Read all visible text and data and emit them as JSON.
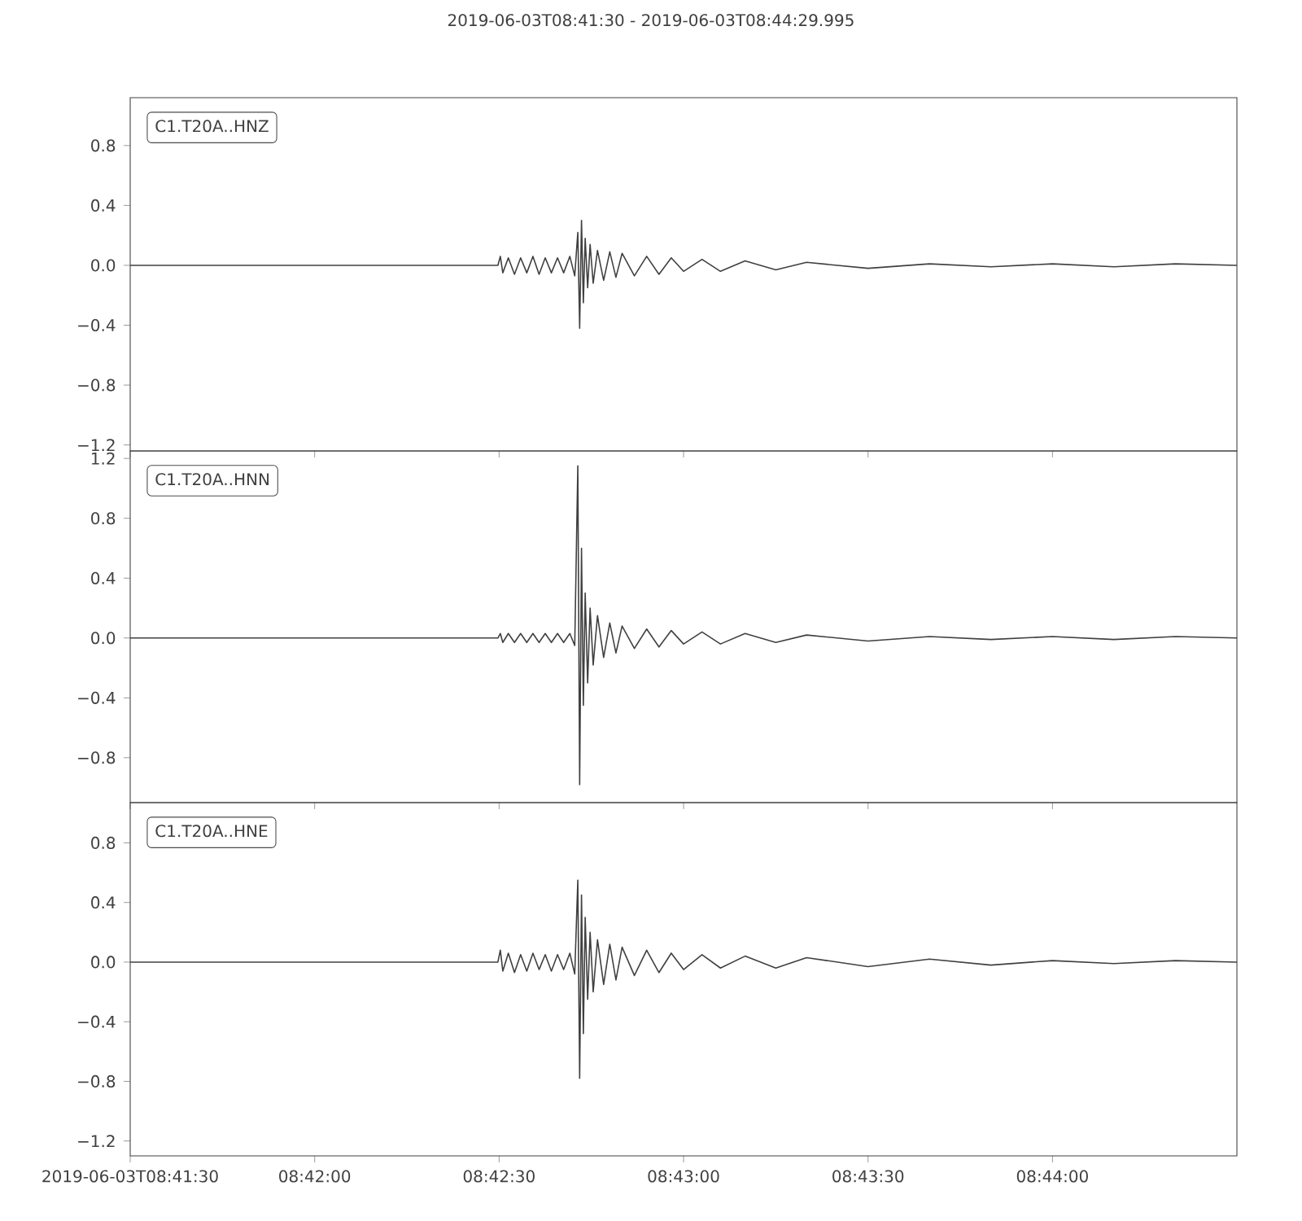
{
  "chart_data": [
    {
      "type": "line",
      "title": "2019-06-03T08:41:30  -  2019-06-03T08:44:29.995",
      "legend": "top left",
      "tick_labels": "y",
      "xlim": [
        "2019-06-03T08:41:30",
        "2019-06-03T08:44:29.995"
      ],
      "xticks": [
        {
          "value": "2019-06-03T08:41:30",
          "label": null
        },
        {
          "value": "2019-06-03T08:42:00",
          "label": null
        },
        {
          "value": "2019-06-03T08:42:30",
          "label": null
        },
        {
          "value": "2019-06-03T08:43:00",
          "label": null
        },
        {
          "value": "2019-06-03T08:43:30",
          "label": null
        },
        {
          "value": "2019-06-03T08:44:00",
          "label": null
        }
      ],
      "ylim": [
        -1.24,
        1.12
      ],
      "yticks": [
        {
          "value": -1.2,
          "label": "−1.2"
        },
        {
          "value": -0.8,
          "label": "−0.8"
        },
        {
          "value": -0.4,
          "label": "−0.4"
        },
        {
          "value": 0,
          "label": "0.0"
        },
        {
          "value": 0.4,
          "label": "0.4"
        },
        {
          "value": 0.8,
          "label": "0.8"
        }
      ],
      "series": [
        {
          "name": "C1.T20A..HNZ",
          "color": "#404040",
          "x": [
            "2019-06-03T08:41:30",
            "2019-06-03T08:42:29.8",
            "2019-06-03T08:42:30.2",
            "2019-06-03T08:42:30.6",
            "2019-06-03T08:42:31.5",
            "2019-06-03T08:42:32.5",
            "2019-06-03T08:42:33.5",
            "2019-06-03T08:42:34.5",
            "2019-06-03T08:42:35.5",
            "2019-06-03T08:42:36.5",
            "2019-06-03T08:42:37.5",
            "2019-06-03T08:42:38.5",
            "2019-06-03T08:42:39.5",
            "2019-06-03T08:42:40.5",
            "2019-06-03T08:42:41.5",
            "2019-06-03T08:42:42.3",
            "2019-06-03T08:42:42.8",
            "2019-06-03T08:42:43.1",
            "2019-06-03T08:42:43.4",
            "2019-06-03T08:42:43.7",
            "2019-06-03T08:42:44",
            "2019-06-03T08:42:44.4",
            "2019-06-03T08:42:44.8",
            "2019-06-03T08:42:45.3",
            "2019-06-03T08:42:46",
            "2019-06-03T08:42:47",
            "2019-06-03T08:42:48",
            "2019-06-03T08:42:49",
            "2019-06-03T08:42:50",
            "2019-06-03T08:42:52",
            "2019-06-03T08:42:54",
            "2019-06-03T08:42:56",
            "2019-06-03T08:42:58",
            "2019-06-03T08:43:00",
            "2019-06-03T08:43:03",
            "2019-06-03T08:43:06",
            "2019-06-03T08:43:10",
            "2019-06-03T08:43:15",
            "2019-06-03T08:43:20",
            "2019-06-03T08:43:30",
            "2019-06-03T08:43:40",
            "2019-06-03T08:43:50",
            "2019-06-03T08:44:00",
            "2019-06-03T08:44:10",
            "2019-06-03T08:44:20",
            "2019-06-03T08:44:29.995"
          ],
          "values": [
            0,
            0,
            0.06,
            -0.05,
            0.05,
            -0.06,
            0.05,
            -0.05,
            0.06,
            -0.06,
            0.05,
            -0.05,
            0.05,
            -0.05,
            0.06,
            -0.07,
            0.22,
            -0.42,
            0.3,
            -0.25,
            0.18,
            -0.15,
            0.14,
            -0.12,
            0.1,
            -0.1,
            0.09,
            -0.08,
            0.08,
            -0.07,
            0.06,
            -0.06,
            0.05,
            -0.04,
            0.04,
            -0.04,
            0.03,
            -0.03,
            0.02,
            -0.02,
            0.01,
            -0.01,
            0.01,
            -0.01,
            0.01,
            0
          ]
        }
      ]
    },
    {
      "type": "line",
      "legend": "top left",
      "tick_labels": "y",
      "xlim": [
        "2019-06-03T08:41:30",
        "2019-06-03T08:44:29.995"
      ],
      "xticks": [
        {
          "value": "2019-06-03T08:41:30",
          "label": null
        },
        {
          "value": "2019-06-03T08:42:00",
          "label": null
        },
        {
          "value": "2019-06-03T08:42:30",
          "label": null
        },
        {
          "value": "2019-06-03T08:43:00",
          "label": null
        },
        {
          "value": "2019-06-03T08:43:30",
          "label": null
        },
        {
          "value": "2019-06-03T08:44:00",
          "label": null
        }
      ],
      "ylim": [
        -1.1,
        1.25
      ],
      "yticks": [
        {
          "value": -0.8,
          "label": "−0.8"
        },
        {
          "value": -0.4,
          "label": "−0.4"
        },
        {
          "value": 0,
          "label": "0.0"
        },
        {
          "value": 0.4,
          "label": "0.4"
        },
        {
          "value": 0.8,
          "label": "0.8"
        },
        {
          "value": 1.2,
          "label": "1.2"
        }
      ],
      "series": [
        {
          "name": "C1.T20A..HNN",
          "color": "#404040",
          "x": [
            "2019-06-03T08:41:30",
            "2019-06-03T08:42:29.8",
            "2019-06-03T08:42:30.2",
            "2019-06-03T08:42:30.6",
            "2019-06-03T08:42:31.5",
            "2019-06-03T08:42:32.5",
            "2019-06-03T08:42:33.5",
            "2019-06-03T08:42:34.5",
            "2019-06-03T08:42:35.5",
            "2019-06-03T08:42:36.5",
            "2019-06-03T08:42:37.5",
            "2019-06-03T08:42:38.5",
            "2019-06-03T08:42:39.5",
            "2019-06-03T08:42:40.5",
            "2019-06-03T08:42:41.5",
            "2019-06-03T08:42:42.3",
            "2019-06-03T08:42:42.8",
            "2019-06-03T08:42:43.1",
            "2019-06-03T08:42:43.4",
            "2019-06-03T08:42:43.7",
            "2019-06-03T08:42:44",
            "2019-06-03T08:42:44.4",
            "2019-06-03T08:42:44.8",
            "2019-06-03T08:42:45.3",
            "2019-06-03T08:42:46",
            "2019-06-03T08:42:47",
            "2019-06-03T08:42:48",
            "2019-06-03T08:42:49",
            "2019-06-03T08:42:50",
            "2019-06-03T08:42:52",
            "2019-06-03T08:42:54",
            "2019-06-03T08:42:56",
            "2019-06-03T08:42:58",
            "2019-06-03T08:43:00",
            "2019-06-03T08:43:03",
            "2019-06-03T08:43:06",
            "2019-06-03T08:43:10",
            "2019-06-03T08:43:15",
            "2019-06-03T08:43:20",
            "2019-06-03T08:43:30",
            "2019-06-03T08:43:40",
            "2019-06-03T08:43:50",
            "2019-06-03T08:44:00",
            "2019-06-03T08:44:10",
            "2019-06-03T08:44:20",
            "2019-06-03T08:44:29.995"
          ],
          "values": [
            0,
            0,
            0.03,
            -0.03,
            0.03,
            -0.03,
            0.03,
            -0.03,
            0.03,
            -0.03,
            0.03,
            -0.03,
            0.03,
            -0.03,
            0.03,
            -0.05,
            1.15,
            -0.98,
            0.6,
            -0.45,
            0.3,
            -0.3,
            0.2,
            -0.18,
            0.15,
            -0.13,
            0.1,
            -0.1,
            0.08,
            -0.07,
            0.06,
            -0.06,
            0.05,
            -0.04,
            0.04,
            -0.04,
            0.03,
            -0.03,
            0.02,
            -0.02,
            0.01,
            -0.01,
            0.01,
            -0.01,
            0.01,
            0
          ]
        }
      ]
    },
    {
      "type": "line",
      "legend": "top left",
      "xlim": [
        "2019-06-03T08:41:30",
        "2019-06-03T08:44:29.995"
      ],
      "xticks": [
        {
          "value": "2019-06-03T08:41:30",
          "label": "2019-06-03T08:41:30"
        },
        {
          "value": "2019-06-03T08:42:00",
          "label": "08:42:00"
        },
        {
          "value": "2019-06-03T08:42:30",
          "label": "08:42:30"
        },
        {
          "value": "2019-06-03T08:43:00",
          "label": "08:43:00"
        },
        {
          "value": "2019-06-03T08:43:30",
          "label": "08:43:30"
        },
        {
          "value": "2019-06-03T08:44:00",
          "label": "08:44:00"
        }
      ],
      "ylim": [
        -1.3,
        1.07
      ],
      "yticks": [
        {
          "value": -1.2,
          "label": "−1.2"
        },
        {
          "value": -0.8,
          "label": "−0.8"
        },
        {
          "value": -0.4,
          "label": "−0.4"
        },
        {
          "value": 0,
          "label": "0.0"
        },
        {
          "value": 0.4,
          "label": "0.4"
        },
        {
          "value": 0.8,
          "label": "0.8"
        }
      ],
      "series": [
        {
          "name": "C1.T20A..HNE",
          "color": "#404040",
          "x": [
            "2019-06-03T08:41:30",
            "2019-06-03T08:42:29.8",
            "2019-06-03T08:42:30.2",
            "2019-06-03T08:42:30.6",
            "2019-06-03T08:42:31.5",
            "2019-06-03T08:42:32.5",
            "2019-06-03T08:42:33.5",
            "2019-06-03T08:42:34.5",
            "2019-06-03T08:42:35.5",
            "2019-06-03T08:42:36.5",
            "2019-06-03T08:42:37.5",
            "2019-06-03T08:42:38.5",
            "2019-06-03T08:42:39.5",
            "2019-06-03T08:42:40.5",
            "2019-06-03T08:42:41.5",
            "2019-06-03T08:42:42.3",
            "2019-06-03T08:42:42.8",
            "2019-06-03T08:42:43.1",
            "2019-06-03T08:42:43.4",
            "2019-06-03T08:42:43.7",
            "2019-06-03T08:42:44",
            "2019-06-03T08:42:44.4",
            "2019-06-03T08:42:44.8",
            "2019-06-03T08:42:45.3",
            "2019-06-03T08:42:46",
            "2019-06-03T08:42:47",
            "2019-06-03T08:42:48",
            "2019-06-03T08:42:49",
            "2019-06-03T08:42:50",
            "2019-06-03T08:42:52",
            "2019-06-03T08:42:54",
            "2019-06-03T08:42:56",
            "2019-06-03T08:42:58",
            "2019-06-03T08:43:00",
            "2019-06-03T08:43:03",
            "2019-06-03T08:43:06",
            "2019-06-03T08:43:10",
            "2019-06-03T08:43:15",
            "2019-06-03T08:43:20",
            "2019-06-03T08:43:30",
            "2019-06-03T08:43:40",
            "2019-06-03T08:43:50",
            "2019-06-03T08:44:00",
            "2019-06-03T08:44:10",
            "2019-06-03T08:44:20",
            "2019-06-03T08:44:29.995"
          ],
          "values": [
            0,
            0,
            0.08,
            -0.06,
            0.06,
            -0.07,
            0.05,
            -0.06,
            0.06,
            -0.05,
            0.05,
            -0.06,
            0.05,
            -0.05,
            0.06,
            -0.08,
            0.55,
            -0.78,
            0.45,
            -0.48,
            0.3,
            -0.25,
            0.2,
            -0.2,
            0.15,
            -0.15,
            0.12,
            -0.12,
            0.1,
            -0.09,
            0.08,
            -0.07,
            0.06,
            -0.05,
            0.05,
            -0.04,
            0.04,
            -0.04,
            0.03,
            -0.03,
            0.02,
            -0.02,
            0.01,
            -0.01,
            0.01,
            0
          ]
        }
      ]
    }
  ]
}
